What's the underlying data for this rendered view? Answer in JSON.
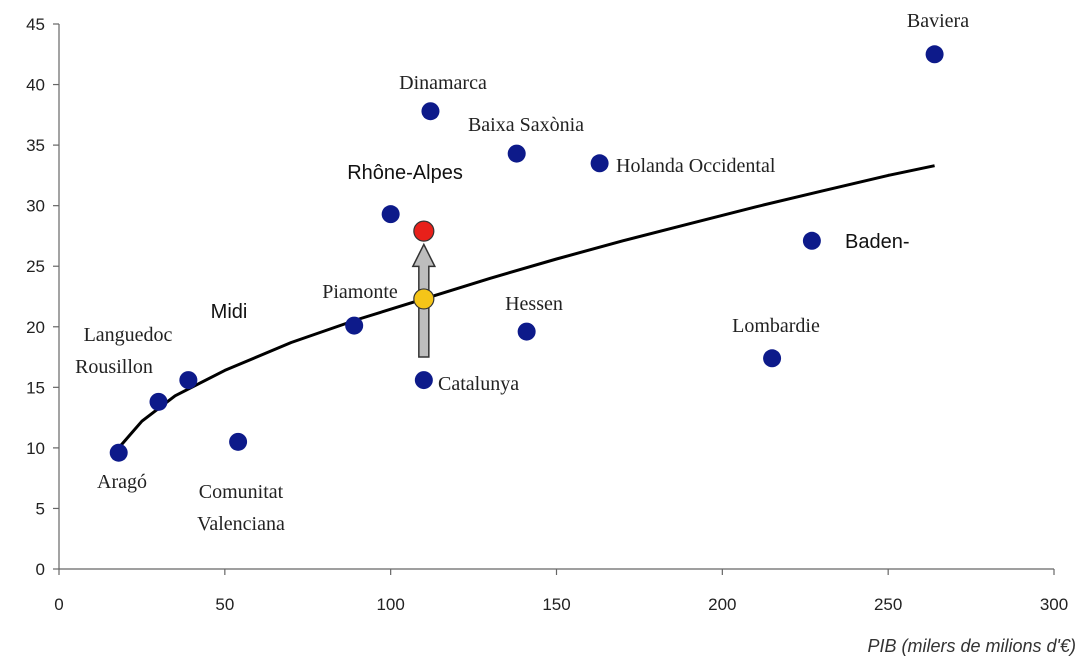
{
  "chart_data": {
    "type": "scatter",
    "title": "",
    "xlabel": "PIB (milers de milions d'€)",
    "ylabel": "",
    "xlim": [
      0,
      300
    ],
    "ylim": [
      0,
      45
    ],
    "x_ticks": [
      0,
      50,
      100,
      150,
      200,
      250,
      300
    ],
    "y_ticks": [
      0,
      5,
      10,
      15,
      20,
      25,
      30,
      35,
      40,
      45
    ],
    "grid": false,
    "legend": "none",
    "point_color": "#0d1a8a",
    "points": [
      {
        "label": "Aragó",
        "x": 18,
        "y": 9.6
      },
      {
        "label": "Languedoc Rousillon",
        "x": 30,
        "y": 13.8
      },
      {
        "label": "Midi",
        "x": 39,
        "y": 15.6
      },
      {
        "label": "Comunitat Valenciana",
        "x": 54,
        "y": 10.5
      },
      {
        "label": "Piamonte",
        "x": 89,
        "y": 20.1
      },
      {
        "label": "Rhône-Alpes",
        "x": 100,
        "y": 29.3
      },
      {
        "label": "Catalunya",
        "x": 110,
        "y": 15.6
      },
      {
        "label": "Dinamarca",
        "x": 112,
        "y": 37.8
      },
      {
        "label": "Baixa Saxònia",
        "x": 138,
        "y": 34.3
      },
      {
        "label": "Hessen",
        "x": 141,
        "y": 19.6
      },
      {
        "label": "Holanda Occidental",
        "x": 163,
        "y": 33.5
      },
      {
        "label": "Lombardie",
        "x": 215,
        "y": 17.4
      },
      {
        "label": "Baden-",
        "x": 227,
        "y": 27.1
      },
      {
        "label": "Baviera",
        "x": 264,
        "y": 42.5
      }
    ],
    "highlight_points": [
      {
        "x": 110,
        "y": 22.3,
        "color": "#f5c518"
      },
      {
        "x": 110,
        "y": 27.9,
        "color": "#e8201a"
      }
    ],
    "arrow": {
      "x": 110,
      "from_y": 17.5,
      "to_y": 26.8
    },
    "trend_curve": {
      "x": [
        18,
        25,
        35,
        50,
        70,
        90,
        110,
        130,
        150,
        170,
        190,
        210,
        230,
        250,
        264
      ],
      "y": [
        10.0,
        12.2,
        14.3,
        16.4,
        18.7,
        20.6,
        22.3,
        24.0,
        25.6,
        27.1,
        28.5,
        29.9,
        31.2,
        32.5,
        33.3
      ]
    }
  }
}
